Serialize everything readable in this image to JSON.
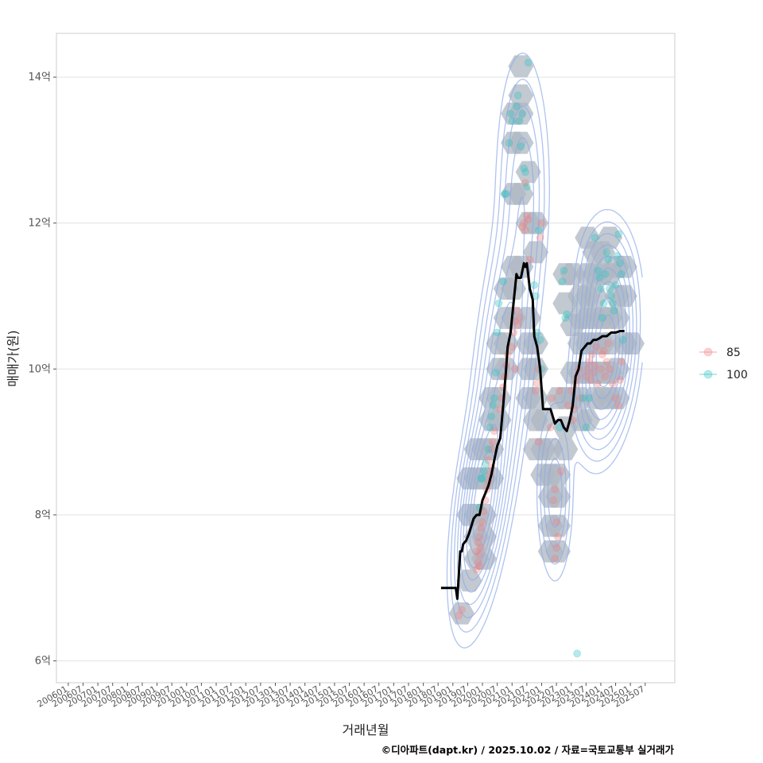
{
  "chart_data": {
    "type": "scatter",
    "xlabel": "거래년월",
    "ylabel": "매매가(원)",
    "caption": "©디아파트(dapt.kr) / 2025.10.02 / 자료=국토교통부 실거래가",
    "x_ticks": [
      "200601",
      "200607",
      "200701",
      "200707",
      "200801",
      "200807",
      "200901",
      "200907",
      "201001",
      "201007",
      "201101",
      "201107",
      "201201",
      "201207",
      "201301",
      "201307",
      "201401",
      "201407",
      "201501",
      "201507",
      "201601",
      "201607",
      "201701",
      "201707",
      "201801",
      "201807",
      "201901",
      "201907",
      "202001",
      "202007",
      "202101",
      "202107",
      "202201",
      "202207",
      "202301",
      "202307",
      "202401",
      "202407",
      "202501",
      "202507"
    ],
    "y_ticks": [
      {
        "value": 6,
        "label": "6억"
      },
      {
        "value": 8,
        "label": "8억"
      },
      {
        "value": 10,
        "label": "10억"
      },
      {
        "value": 12,
        "label": "12억"
      },
      {
        "value": 14,
        "label": "14억"
      }
    ],
    "xlim": [
      2005.6,
      2026.5
    ],
    "ylim": [
      5.7,
      14.6
    ],
    "grid": true,
    "legend_position": "right",
    "colors": {
      "85": "#F08080",
      "100": "#2EC4C4",
      "trend": "#000000",
      "hexbin": "#AEB7C2",
      "density": "#8DA9E8"
    },
    "series": [
      {
        "name": "85",
        "color": "#F08080",
        "points": [
          [
            2019.2,
            6.62
          ],
          [
            2019.3,
            6.7
          ],
          [
            2019.8,
            7.25
          ],
          [
            2019.85,
            7.35
          ],
          [
            2019.9,
            7.45
          ],
          [
            2019.95,
            7.55
          ],
          [
            2019.85,
            7.62
          ],
          [
            2019.9,
            7.7
          ],
          [
            2019.95,
            7.82
          ],
          [
            2020.0,
            7.9
          ],
          [
            2019.8,
            7.5
          ],
          [
            2019.9,
            7.3
          ],
          [
            2020.05,
            8.05
          ],
          [
            2020.1,
            8.2
          ],
          [
            2020.15,
            8.35
          ],
          [
            2020.2,
            8.45
          ],
          [
            2020.25,
            8.55
          ],
          [
            2020.3,
            8.65
          ],
          [
            2020.2,
            8.75
          ],
          [
            2020.3,
            8.9
          ],
          [
            2020.35,
            9.0
          ],
          [
            2020.4,
            9.15
          ],
          [
            2020.6,
            9.45
          ],
          [
            2020.65,
            9.6
          ],
          [
            2020.7,
            9.75
          ],
          [
            2020.75,
            9.9
          ],
          [
            2020.8,
            10.05
          ],
          [
            2020.85,
            10.2
          ],
          [
            2021.0,
            10.3
          ],
          [
            2021.05,
            10.5
          ],
          [
            2021.1,
            10.65
          ],
          [
            2021.15,
            10.8
          ],
          [
            2021.2,
            10.6
          ],
          [
            2021.25,
            10.7
          ],
          [
            2021.1,
            10.0
          ],
          [
            2021.35,
            11.95
          ],
          [
            2021.4,
            12.0
          ],
          [
            2021.45,
            11.9
          ],
          [
            2021.5,
            12.1
          ],
          [
            2021.55,
            12.05
          ],
          [
            2021.45,
            12.55
          ],
          [
            2021.6,
            11.5
          ],
          [
            2021.8,
            9.7
          ],
          [
            2021.85,
            9.8
          ],
          [
            2021.9,
            10.0
          ],
          [
            2021.95,
            11.8
          ],
          [
            2022.0,
            12.0
          ],
          [
            2021.9,
            9.0
          ],
          [
            2022.3,
            9.2
          ],
          [
            2022.35,
            9.6
          ],
          [
            2022.4,
            8.2
          ],
          [
            2022.45,
            8.35
          ],
          [
            2022.5,
            7.9
          ],
          [
            2022.55,
            7.7
          ],
          [
            2022.5,
            7.55
          ],
          [
            2022.45,
            7.4
          ],
          [
            2022.6,
            9.7
          ],
          [
            2022.65,
            8.6
          ],
          [
            2022.9,
            9.5
          ],
          [
            2023.0,
            9.7
          ],
          [
            2023.05,
            9.3
          ],
          [
            2023.1,
            9.45
          ],
          [
            2023.15,
            9.8
          ],
          [
            2023.2,
            9.9
          ],
          [
            2023.25,
            10.0
          ],
          [
            2023.3,
            9.6
          ],
          [
            2023.5,
            9.9
          ],
          [
            2023.55,
            10.0
          ],
          [
            2023.6,
            10.1
          ],
          [
            2023.65,
            9.85
          ],
          [
            2023.7,
            10.2
          ],
          [
            2023.75,
            9.95
          ],
          [
            2023.8,
            10.05
          ],
          [
            2023.85,
            10.3
          ],
          [
            2023.9,
            9.8
          ],
          [
            2024.0,
            10.0
          ],
          [
            2024.05,
            10.2
          ],
          [
            2024.1,
            10.25
          ],
          [
            2024.15,
            9.9
          ],
          [
            2024.2,
            10.1
          ],
          [
            2024.25,
            10.35
          ],
          [
            2024.3,
            10.0
          ],
          [
            2024.4,
            9.8
          ],
          [
            2024.5,
            9.6
          ],
          [
            2024.6,
            9.5
          ],
          [
            2024.65,
            9.85
          ],
          [
            2024.7,
            10.1
          ]
        ]
      },
      {
        "name": "100",
        "color": "#2EC4C4",
        "points": [
          [
            2020.0,
            8.5
          ],
          [
            2020.05,
            8.6
          ],
          [
            2020.1,
            8.7
          ],
          [
            2020.2,
            8.9
          ],
          [
            2020.25,
            9.2
          ],
          [
            2020.3,
            9.35
          ],
          [
            2020.35,
            9.5
          ],
          [
            2020.4,
            9.6
          ],
          [
            2019.9,
            8.1
          ],
          [
            2019.95,
            8.5
          ],
          [
            2020.45,
            9.95
          ],
          [
            2020.5,
            10.5
          ],
          [
            2020.55,
            10.9
          ],
          [
            2020.7,
            11.2
          ],
          [
            2020.75,
            12.4
          ],
          [
            2020.8,
            12.4
          ],
          [
            2020.9,
            13.1
          ],
          [
            2020.95,
            13.5
          ],
          [
            2021.0,
            13.4
          ],
          [
            2021.15,
            13.6
          ],
          [
            2021.2,
            13.75
          ],
          [
            2021.25,
            13.4
          ],
          [
            2021.3,
            13.05
          ],
          [
            2021.35,
            13.5
          ],
          [
            2021.4,
            12.75
          ],
          [
            2021.45,
            12.7
          ],
          [
            2021.5,
            12.5
          ],
          [
            2021.55,
            14.2
          ],
          [
            2021.75,
            11.15
          ],
          [
            2021.8,
            11.0
          ],
          [
            2021.85,
            10.5
          ],
          [
            2021.9,
            11.9
          ],
          [
            2021.95,
            10.4
          ],
          [
            2022.0,
            10.0
          ],
          [
            2022.6,
            9.2
          ],
          [
            2022.7,
            11.2
          ],
          [
            2022.75,
            11.35
          ],
          [
            2022.8,
            10.7
          ],
          [
            2022.85,
            10.75
          ],
          [
            2023.2,
            6.1
          ],
          [
            2023.4,
            9.6
          ],
          [
            2023.5,
            9.2
          ],
          [
            2023.6,
            9.6
          ],
          [
            2023.8,
            11.8
          ],
          [
            2023.9,
            11.35
          ],
          [
            2023.95,
            11.25
          ],
          [
            2024.0,
            11.1
          ],
          [
            2024.05,
            10.7
          ],
          [
            2024.1,
            10.9
          ],
          [
            2024.15,
            11.3
          ],
          [
            2024.2,
            11.6
          ],
          [
            2024.25,
            11.5
          ],
          [
            2024.3,
            11.1
          ],
          [
            2024.35,
            11.0
          ],
          [
            2024.4,
            10.9
          ],
          [
            2024.45,
            10.8
          ],
          [
            2024.5,
            11.15
          ],
          [
            2024.55,
            11.55
          ],
          [
            2024.6,
            11.85
          ],
          [
            2024.65,
            11.45
          ],
          [
            2024.7,
            11.3
          ],
          [
            2024.75,
            10.4
          ]
        ]
      }
    ],
    "trend_line": {
      "x": [
        2018.6,
        2019.0,
        2019.1,
        2019.15,
        2019.25,
        2019.3,
        2019.35,
        2019.45,
        2019.55,
        2019.7,
        2019.8,
        2019.9,
        2020.0,
        2020.1,
        2020.2,
        2020.3,
        2020.4,
        2020.5,
        2020.6,
        2020.7,
        2020.8,
        2020.85,
        2020.95,
        2021.05,
        2021.15,
        2021.2,
        2021.3,
        2021.4,
        2021.45,
        2021.5,
        2021.6,
        2021.7,
        2021.75,
        2021.85,
        2021.95,
        2022.05,
        2022.15,
        2022.3,
        2022.45,
        2022.55,
        2022.65,
        2022.75,
        2022.85,
        2022.95,
        2023.05,
        2023.15,
        2023.25,
        2023.35,
        2023.45,
        2023.55,
        2023.65,
        2023.75,
        2023.85,
        2023.95,
        2024.05,
        2024.2,
        2024.35,
        2024.5,
        2024.65,
        2024.8
      ],
      "y": [
        7.0,
        7.0,
        7.0,
        6.85,
        7.5,
        7.5,
        7.6,
        7.65,
        7.75,
        7.95,
        8.0,
        8.0,
        8.2,
        8.3,
        8.4,
        8.55,
        8.75,
        8.95,
        9.05,
        9.5,
        10.0,
        10.3,
        10.5,
        10.9,
        11.3,
        11.25,
        11.25,
        11.45,
        11.4,
        11.45,
        11.1,
        10.95,
        10.45,
        10.3,
        10.0,
        9.45,
        9.45,
        9.45,
        9.25,
        9.3,
        9.3,
        9.2,
        9.15,
        9.3,
        9.5,
        9.9,
        10.0,
        10.25,
        10.3,
        10.35,
        10.35,
        10.4,
        10.4,
        10.42,
        10.45,
        10.45,
        10.5,
        10.5,
        10.52,
        10.52
      ]
    },
    "hexbins": [
      [
        2019.3,
        6.65
      ],
      [
        2019.55,
        7.1
      ],
      [
        2019.8,
        7.4
      ],
      [
        2020.05,
        7.4
      ],
      [
        2019.8,
        7.7
      ],
      [
        2020.05,
        7.7
      ],
      [
        2019.55,
        8.0
      ],
      [
        2019.8,
        8.0
      ],
      [
        2020.05,
        8.0
      ],
      [
        2019.55,
        8.5
      ],
      [
        2019.8,
        8.5
      ],
      [
        2020.05,
        8.5
      ],
      [
        2020.3,
        8.5
      ],
      [
        2019.8,
        8.9
      ],
      [
        2020.05,
        8.9
      ],
      [
        2020.3,
        8.9
      ],
      [
        2020.3,
        9.3
      ],
      [
        2020.55,
        9.3
      ],
      [
        2020.3,
        9.6
      ],
      [
        2020.55,
        9.6
      ],
      [
        2020.55,
        10.0
      ],
      [
        2020.8,
        10.0
      ],
      [
        2020.55,
        10.35
      ],
      [
        2020.8,
        10.35
      ],
      [
        2020.8,
        10.7
      ],
      [
        2021.05,
        10.7
      ],
      [
        2020.8,
        11.1
      ],
      [
        2021.05,
        11.1
      ],
      [
        2021.05,
        11.4
      ],
      [
        2021.3,
        11.4
      ],
      [
        2021.05,
        12.4
      ],
      [
        2021.3,
        12.4
      ],
      [
        2021.05,
        13.1
      ],
      [
        2021.3,
        13.1
      ],
      [
        2021.05,
        13.5
      ],
      [
        2021.3,
        13.5
      ],
      [
        2021.3,
        13.75
      ],
      [
        2021.3,
        14.15
      ],
      [
        2021.55,
        12.7
      ],
      [
        2021.55,
        12.0
      ],
      [
        2021.8,
        12.0
      ],
      [
        2021.8,
        11.6
      ],
      [
        2021.55,
        10.7
      ],
      [
        2021.55,
        10.35
      ],
      [
        2021.8,
        10.35
      ],
      [
        2021.55,
        10.0
      ],
      [
        2021.8,
        10.0
      ],
      [
        2021.55,
        9.6
      ],
      [
        2021.8,
        9.6
      ],
      [
        2021.8,
        9.3
      ],
      [
        2022.05,
        9.3
      ],
      [
        2021.8,
        8.9
      ],
      [
        2022.05,
        8.9
      ],
      [
        2022.3,
        8.9
      ],
      [
        2022.05,
        8.55
      ],
      [
        2022.3,
        8.55
      ],
      [
        2022.55,
        8.55
      ],
      [
        2022.3,
        8.25
      ],
      [
        2022.55,
        8.25
      ],
      [
        2022.3,
        7.85
      ],
      [
        2022.55,
        7.85
      ],
      [
        2022.3,
        7.5
      ],
      [
        2022.55,
        7.5
      ],
      [
        2022.55,
        9.6
      ],
      [
        2022.8,
        9.6
      ],
      [
        2022.8,
        9.2
      ],
      [
        2022.8,
        8.9
      ],
      [
        2022.8,
        10.9
      ],
      [
        2022.8,
        11.3
      ],
      [
        2023.05,
        11.3
      ],
      [
        2023.05,
        10.6
      ],
      [
        2023.05,
        9.95
      ],
      [
        2023.3,
        9.95
      ],
      [
        2023.05,
        9.6
      ],
      [
        2023.3,
        9.6
      ],
      [
        2023.3,
        9.3
      ],
      [
        2023.55,
        9.3
      ],
      [
        2023.3,
        10.35
      ],
      [
        2023.55,
        10.35
      ],
      [
        2023.3,
        10.7
      ],
      [
        2023.55,
        10.7
      ],
      [
        2023.8,
        10.7
      ],
      [
        2023.3,
        11.0
      ],
      [
        2023.55,
        11.0
      ],
      [
        2023.8,
        11.0
      ],
      [
        2023.55,
        11.3
      ],
      [
        2023.8,
        11.3
      ],
      [
        2023.55,
        11.8
      ],
      [
        2023.8,
        11.6
      ],
      [
        2024.05,
        11.6
      ],
      [
        2024.05,
        11.3
      ],
      [
        2024.3,
        11.3
      ],
      [
        2024.3,
        11.8
      ],
      [
        2023.55,
        9.95
      ],
      [
        2023.8,
        9.95
      ],
      [
        2024.05,
        9.95
      ],
      [
        2024.3,
        9.95
      ],
      [
        2023.8,
        9.6
      ],
      [
        2024.05,
        9.6
      ],
      [
        2024.3,
        9.6
      ],
      [
        2023.8,
        10.35
      ],
      [
        2024.05,
        10.35
      ],
      [
        2024.3,
        10.35
      ],
      [
        2024.3,
        10.7
      ],
      [
        2024.55,
        10.7
      ],
      [
        2024.05,
        10.7
      ],
      [
        2024.55,
        10.0
      ],
      [
        2024.55,
        9.6
      ],
      [
        2024.55,
        11.0
      ],
      [
        2024.55,
        11.4
      ],
      [
        2024.8,
        11.4
      ],
      [
        2024.8,
        11.0
      ],
      [
        2024.8,
        10.35
      ],
      [
        2025.05,
        10.35
      ]
    ],
    "density": {
      "components": [
        {
          "cx": 2019.95,
          "cy": 8.1,
          "sx": 0.45,
          "sy": 0.75,
          "rho": 0.5,
          "w": 1.0
        },
        {
          "cx": 2020.7,
          "cy": 10.0,
          "sx": 0.55,
          "sy": 1.2,
          "rho": 0.55,
          "w": 0.55
        },
        {
          "cx": 2021.35,
          "cy": 12.6,
          "sx": 0.45,
          "sy": 0.9,
          "rho": 0.0,
          "w": 0.25
        },
        {
          "cx": 2022.45,
          "cy": 8.3,
          "sx": 0.3,
          "sy": 0.6,
          "rho": 0.0,
          "w": 0.3
        },
        {
          "cx": 2024.15,
          "cy": 10.1,
          "sx": 0.5,
          "sy": 0.6,
          "rho": 0.25,
          "w": 1.05
        },
        {
          "cx": 2024.2,
          "cy": 11.1,
          "sx": 0.5,
          "sy": 0.5,
          "rho": 0.0,
          "w": 0.4
        }
      ],
      "levels": [
        0.04,
        0.08,
        0.14,
        0.22,
        0.32,
        0.44,
        0.58,
        0.74,
        0.9
      ]
    }
  }
}
